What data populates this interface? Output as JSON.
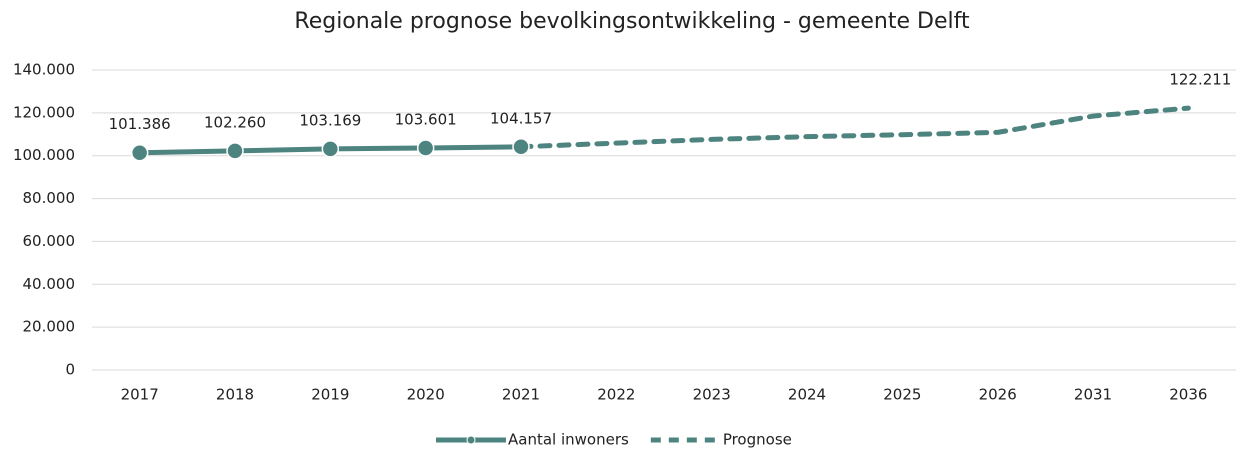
{
  "chart_data": {
    "type": "line",
    "title": "Regionale prognose bevolkingsontwikkeling - gemeente Delft",
    "categories": [
      "2017",
      "2018",
      "2019",
      "2020",
      "2021",
      "2022",
      "2023",
      "2024",
      "2025",
      "2026",
      "2031",
      "2036"
    ],
    "series": [
      {
        "name": "Aantal inwoners",
        "color": "#4e8480",
        "markers": true,
        "dash": false,
        "values": [
          101386,
          102260,
          103169,
          103601,
          104157,
          null,
          null,
          null,
          null,
          null,
          null,
          null
        ],
        "value_labels": [
          "101.386",
          "102.260",
          "103.169",
          "103.601",
          "104.157",
          null,
          null,
          null,
          null,
          null,
          null,
          null
        ]
      },
      {
        "name": "Prognose",
        "color": "#4e8480",
        "markers": false,
        "dash": true,
        "values": [
          null,
          null,
          null,
          null,
          104157,
          105900,
          107600,
          108900,
          109800,
          110900,
          118500,
          122211
        ],
        "value_labels": [
          null,
          null,
          null,
          null,
          null,
          null,
          null,
          null,
          null,
          null,
          null,
          "122.211"
        ]
      }
    ],
    "ylim": [
      0,
      140000
    ],
    "yticks": [
      0,
      {
        "value": 20000,
        "label": "20.000"
      },
      {
        "value": 40000,
        "label": "40.000"
      },
      {
        "value": 60000,
        "label": "60.000"
      },
      {
        "value": 80000,
        "label": "80.000"
      },
      {
        "value": 100000,
        "label": "100.000"
      },
      {
        "value": 120000,
        "label": "120.000"
      },
      {
        "value": 140000,
        "label": "140.000"
      }
    ],
    "grid": true,
    "legend": "bottom"
  }
}
